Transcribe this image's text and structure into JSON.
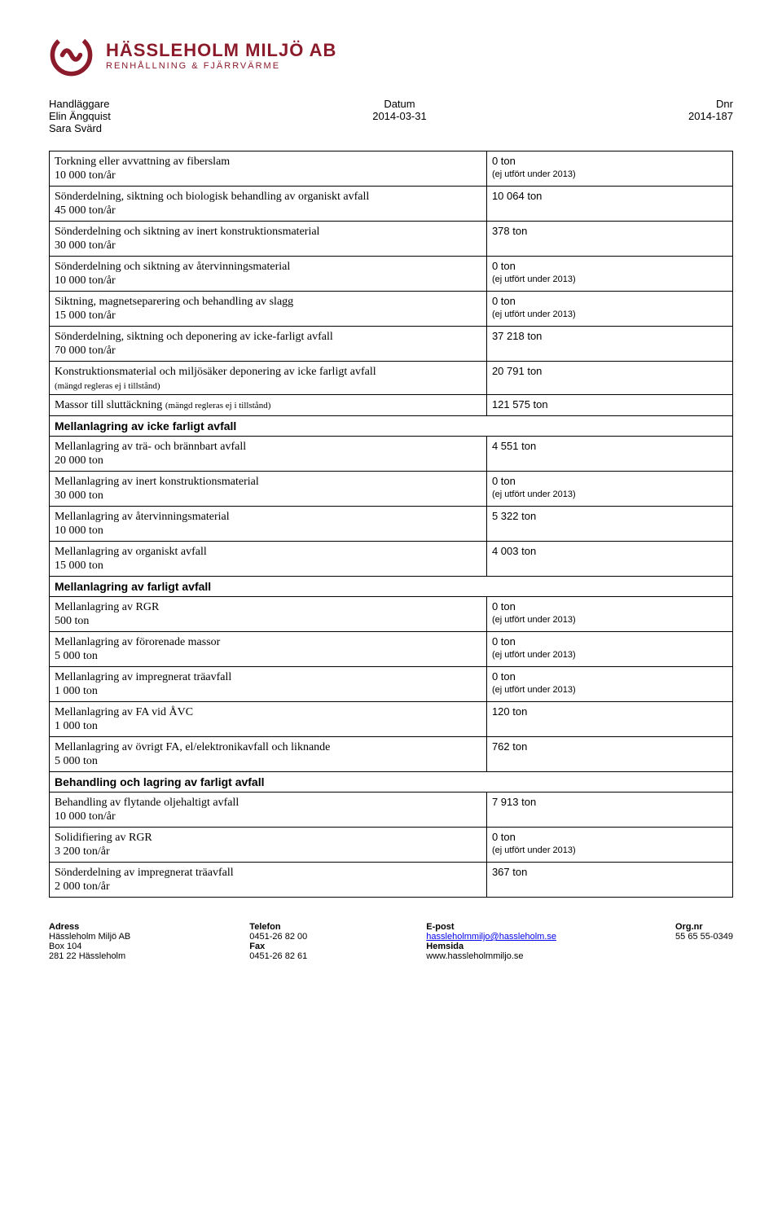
{
  "company": {
    "name": "HÄSSLEHOLM MILJÖ AB",
    "subtitle": "RENHÅLLNING & FJÄRRVÄRME",
    "logo_color": "#8b1a2b"
  },
  "meta": {
    "handler_label": "Handläggare",
    "handler1": "Elin Ängquist",
    "handler2": "Sara Svärd",
    "date_label": "Datum",
    "date": "2014-03-31",
    "dnr_label": "Dnr",
    "dnr": "2014-187"
  },
  "not_performed": "(ej utfört under 2013)",
  "rows": [
    {
      "type": "row",
      "title": "Torkning eller avvattning av fiberslam",
      "sub": "10 000 ton/år",
      "value": "0 ton",
      "note": true
    },
    {
      "type": "row",
      "title": "Sönderdelning, siktning och biologisk behandling av organiskt avfall",
      "sub": "45 000 ton/år",
      "value": "10 064 ton"
    },
    {
      "type": "row",
      "title": "Sönderdelning och siktning av inert konstruktionsmaterial",
      "sub": "30 000 ton/år",
      "value": "378 ton"
    },
    {
      "type": "row",
      "title": "Sönderdelning och siktning av återvinningsmaterial",
      "sub": "10 000 ton/år",
      "value": "0 ton",
      "note": true
    },
    {
      "type": "row",
      "title": "Siktning, magnetseparering och behandling av slagg",
      "sub": "15 000 ton/år",
      "value": "0 ton",
      "note": true
    },
    {
      "type": "row",
      "title": "Sönderdelning, siktning och deponering av icke-farligt avfall",
      "sub": "70 000 ton/år",
      "value": "37 218 ton"
    },
    {
      "type": "row",
      "title": "Konstruktionsmaterial och miljösäker deponering av icke farligt avfall",
      "note_title": "(mängd regleras ej i tillstånd)",
      "value": "20 791 ton"
    },
    {
      "type": "row",
      "title": "Massor till sluttäckning",
      "inline_note": "(mängd regleras ej i tillstånd)",
      "value": "121 575 ton"
    },
    {
      "type": "section",
      "title": "Mellanlagring av icke farligt avfall"
    },
    {
      "type": "row",
      "title": "Mellanlagring av trä- och brännbart avfall",
      "sub": "20 000 ton",
      "value": "4 551 ton"
    },
    {
      "type": "row",
      "title": "Mellanlagring av inert konstruktionsmaterial",
      "sub": "30 000 ton",
      "value": "0 ton",
      "note": true
    },
    {
      "type": "row",
      "title": "Mellanlagring av återvinningsmaterial",
      "sub": " 10 000 ton",
      "value": "5 322 ton"
    },
    {
      "type": "row",
      "title": "Mellanlagring av organiskt avfall",
      "sub": "15 000 ton",
      "value": "4 003 ton"
    },
    {
      "type": "section",
      "title": "Mellanlagring av farligt avfall"
    },
    {
      "type": "row",
      "title": "Mellanlagring av RGR",
      "sub": "500 ton",
      "value": "0 ton",
      "note": true
    },
    {
      "type": "row",
      "title": "Mellanlagring av förorenade massor",
      "sub": "5 000 ton",
      "value": "0 ton",
      "note": true
    },
    {
      "type": "row",
      "title": "Mellanlagring av impregnerat träavfall",
      "sub": "1 000 ton",
      "value": "0 ton",
      "note": true
    },
    {
      "type": "row",
      "title": "Mellanlagring av FA vid ÅVC",
      "sub": "1 000 ton",
      "value": "120 ton"
    },
    {
      "type": "row",
      "title": "Mellanlagring av övrigt FA, el/elektronikavfall och liknande",
      "sub": "5 000 ton",
      "value": "762 ton"
    },
    {
      "type": "section",
      "title": "Behandling och lagring av farligt avfall",
      "attached": true
    },
    {
      "type": "row",
      "title": "Behandling av flytande oljehaltigt avfall",
      "sub": "10 000 ton/år",
      "value": "7 913 ton"
    },
    {
      "type": "row",
      "title": "Solidifiering av RGR",
      "sub": "3 200 ton/år",
      "value": "0 ton",
      "note": true
    },
    {
      "type": "row",
      "title": "Sönderdelning av impregnerat träavfall",
      "sub": "2 000 ton/år",
      "value": "367 ton"
    }
  ],
  "footer": {
    "col1": {
      "h": "Adress",
      "l1": "Hässleholm Miljö AB",
      "l2": "Box 104",
      "l3": "281 22 Hässleholm"
    },
    "col2": {
      "h": "Telefon",
      "l1": "0451-26 82 00",
      "h2": "Fax",
      "l2": "0451-26 82 61"
    },
    "col3": {
      "h": "E-post",
      "l1": "hassleholmmiljo@hassleholm.se",
      "h2": "Hemsida",
      "l2": "www.hassleholmmiljo.se"
    },
    "col4": {
      "h": "Org.nr",
      "l1": "55 65 55-0349"
    }
  }
}
